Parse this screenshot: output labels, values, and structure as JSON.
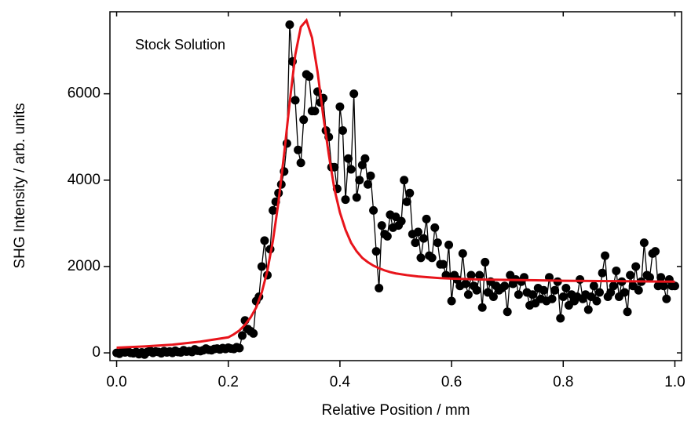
{
  "chart_data": {
    "type": "scatter",
    "annotation": "Stock Solution",
    "xlabel": "Relative Position   / mm",
    "ylabel": "SHG Intensity   / arb. units",
    "xlim": [
      -0.012,
      1.012
    ],
    "ylim": [
      -180,
      7900
    ],
    "xticks": [
      {
        "value": 0,
        "label": "0.0"
      },
      0.2,
      0.4,
      0.6,
      0.8,
      {
        "value": 1,
        "label": "1.0"
      }
    ],
    "yticks": [
      0,
      2000,
      4000,
      6000
    ],
    "series": [
      {
        "color": "#000000",
        "mode": "markers+lines",
        "x": [
          0,
          0.005,
          0.01,
          0.015,
          0.02,
          0.025,
          0.03,
          0.035,
          0.04,
          0.045,
          0.05,
          0.055,
          0.06,
          0.065,
          0.07,
          0.075,
          0.08,
          0.085,
          0.09,
          0.095,
          0.1,
          0.105,
          0.11,
          0.115,
          0.12,
          0.125,
          0.13,
          0.135,
          0.14,
          0.145,
          0.15,
          0.155,
          0.16,
          0.165,
          0.17,
          0.175,
          0.18,
          0.185,
          0.19,
          0.195,
          0.2,
          0.205,
          0.21,
          0.215,
          0.22,
          0.225,
          0.23,
          0.235,
          0.24,
          0.245,
          0.25,
          0.255,
          0.26,
          0.265,
          0.27,
          0.275,
          0.28,
          0.285,
          0.29,
          0.295,
          0.3,
          0.305,
          0.31,
          0.315,
          0.32,
          0.325,
          0.33,
          0.335,
          0.34,
          0.345,
          0.35,
          0.355,
          0.36,
          0.365,
          0.37,
          0.375,
          0.38,
          0.385,
          0.39,
          0.395,
          0.4,
          0.405,
          0.41,
          0.415,
          0.42,
          0.425,
          0.43,
          0.435,
          0.44,
          0.445,
          0.45,
          0.455,
          0.46,
          0.465,
          0.47,
          0.475,
          0.48,
          0.485,
          0.49,
          0.495,
          0.5,
          0.505,
          0.51,
          0.515,
          0.52,
          0.525,
          0.53,
          0.535,
          0.54,
          0.545,
          0.55,
          0.555,
          0.56,
          0.565,
          0.57,
          0.575,
          0.58,
          0.585,
          0.59,
          0.595,
          0.6,
          0.605,
          0.61,
          0.615,
          0.62,
          0.625,
          0.63,
          0.635,
          0.64,
          0.645,
          0.65,
          0.655,
          0.66,
          0.665,
          0.67,
          0.675,
          0.68,
          0.685,
          0.69,
          0.695,
          0.7,
          0.705,
          0.71,
          0.715,
          0.72,
          0.725,
          0.73,
          0.735,
          0.74,
          0.745,
          0.75,
          0.755,
          0.76,
          0.765,
          0.77,
          0.775,
          0.78,
          0.785,
          0.79,
          0.795,
          0.8,
          0.805,
          0.81,
          0.815,
          0.82,
          0.825,
          0.83,
          0.835,
          0.84,
          0.845,
          0.85,
          0.855,
          0.86,
          0.865,
          0.87,
          0.875,
          0.88,
          0.885,
          0.89,
          0.895,
          0.9,
          0.905,
          0.91,
          0.915,
          0.92,
          0.925,
          0.93,
          0.935,
          0.94,
          0.945,
          0.95,
          0.955,
          0.96,
          0.965,
          0.97,
          0.975,
          0.98,
          0.985,
          0.99,
          0.995,
          1
        ],
        "values": [
          0,
          -20,
          30,
          10,
          40,
          0,
          -10,
          20,
          -30,
          10,
          -40,
          20,
          50,
          0,
          30,
          20,
          -10,
          40,
          10,
          30,
          0,
          50,
          20,
          10,
          60,
          30,
          40,
          20,
          80,
          50,
          40,
          60,
          100,
          70,
          60,
          90,
          100,
          80,
          110,
          90,
          120,
          100,
          90,
          130,
          110,
          400,
          750,
          550,
          500,
          450,
          1200,
          1300,
          2000,
          2600,
          1800,
          2400,
          3300,
          3500,
          3700,
          3900,
          4200,
          4850,
          7600,
          6750,
          5850,
          4700,
          4400,
          5400,
          6450,
          6400,
          5600,
          5600,
          6050,
          5800,
          5900,
          5150,
          5000,
          4300,
          4300,
          3800,
          5700,
          5150,
          3550,
          4500,
          4250,
          6000,
          3600,
          4000,
          4350,
          4500,
          3900,
          4100,
          3300,
          2350,
          1500,
          2950,
          2750,
          2700,
          3200,
          2900,
          3150,
          2950,
          3050,
          4000,
          3500,
          3700,
          2750,
          2550,
          2800,
          2200,
          2650,
          3100,
          2250,
          2200,
          2900,
          2550,
          2050,
          2050,
          1800,
          2500,
          1200,
          1800,
          1700,
          1550,
          2300,
          1600,
          1350,
          1800,
          1550,
          1450,
          1800,
          1050,
          2100,
          1400,
          1650,
          1300,
          1550,
          1450,
          1500,
          1550,
          950,
          1800,
          1600,
          1700,
          1350,
          1650,
          1750,
          1400,
          1100,
          1350,
          1150,
          1500,
          1250,
          1450,
          1200,
          1750,
          1250,
          1450,
          1650,
          800,
          1300,
          1500,
          1100,
          1350,
          1200,
          1300,
          1700,
          1250,
          1350,
          1000,
          1300,
          1550,
          1200,
          1400,
          1850,
          2250,
          1300,
          1400,
          1550,
          1900,
          1300,
          1650,
          1400,
          950,
          1800,
          1550,
          2000,
          1450,
          1650,
          2550,
          1800,
          1750,
          2300,
          2350,
          1550,
          1750,
          1550,
          1250,
          1700,
          1550,
          1550
        ]
      },
      {
        "color": "#e8141b",
        "mode": "lines",
        "x": [
          0,
          0.05,
          0.1,
          0.15,
          0.2,
          0.21,
          0.22,
          0.23,
          0.24,
          0.25,
          0.26,
          0.27,
          0.28,
          0.29,
          0.3,
          0.31,
          0.32,
          0.33,
          0.34,
          0.35,
          0.36,
          0.37,
          0.38,
          0.39,
          0.4,
          0.41,
          0.42,
          0.43,
          0.44,
          0.45,
          0.46,
          0.47,
          0.48,
          0.49,
          0.5,
          0.52,
          0.54,
          0.56,
          0.58,
          0.6,
          0.65,
          0.7,
          0.75,
          0.8,
          0.85,
          0.9,
          0.95,
          1
        ],
        "values": [
          120,
          150,
          190,
          260,
          360,
          430,
          520,
          650,
          820,
          1050,
          1400,
          1900,
          2600,
          3500,
          4600,
          5800,
          6900,
          7550,
          7700,
          7300,
          6500,
          5500,
          4600,
          3800,
          3250,
          2850,
          2550,
          2350,
          2200,
          2100,
          2020,
          1960,
          1910,
          1870,
          1840,
          1800,
          1770,
          1750,
          1730,
          1720,
          1700,
          1690,
          1680,
          1670,
          1665,
          1660,
          1655,
          1650
        ]
      }
    ]
  }
}
